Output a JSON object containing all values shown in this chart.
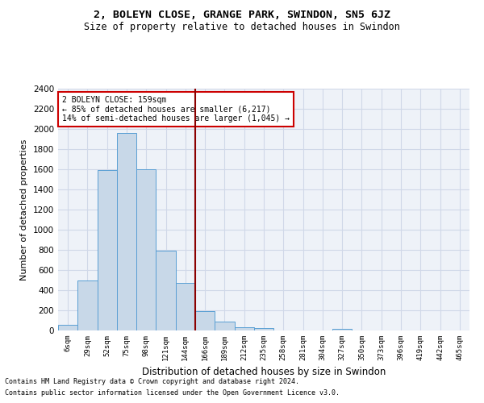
{
  "title1": "2, BOLEYN CLOSE, GRANGE PARK, SWINDON, SN5 6JZ",
  "title2": "Size of property relative to detached houses in Swindon",
  "xlabel": "Distribution of detached houses by size in Swindon",
  "ylabel": "Number of detached properties",
  "categories": [
    "6sqm",
    "29sqm",
    "52sqm",
    "75sqm",
    "98sqm",
    "121sqm",
    "144sqm",
    "166sqm",
    "189sqm",
    "212sqm",
    "235sqm",
    "258sqm",
    "281sqm",
    "304sqm",
    "327sqm",
    "350sqm",
    "373sqm",
    "396sqm",
    "419sqm",
    "442sqm",
    "465sqm"
  ],
  "values": [
    60,
    500,
    1590,
    1960,
    1600,
    790,
    470,
    195,
    90,
    35,
    25,
    0,
    0,
    0,
    20,
    0,
    0,
    0,
    0,
    0,
    0
  ],
  "bar_color": "#c8d8e8",
  "bar_edge_color": "#5a9fd4",
  "vline_color": "#8b0000",
  "annotation_text": "2 BOLEYN CLOSE: 159sqm\n← 85% of detached houses are smaller (6,217)\n14% of semi-detached houses are larger (1,045) →",
  "annotation_box_color": "#ffffff",
  "annotation_box_edge": "#cc0000",
  "ylim": [
    0,
    2400
  ],
  "yticks": [
    0,
    200,
    400,
    600,
    800,
    1000,
    1200,
    1400,
    1600,
    1800,
    2000,
    2200,
    2400
  ],
  "grid_color": "#d0d8e8",
  "bg_color": "#eef2f8",
  "footnote1": "Contains HM Land Registry data © Crown copyright and database right 2024.",
  "footnote2": "Contains public sector information licensed under the Open Government Licence v3.0."
}
